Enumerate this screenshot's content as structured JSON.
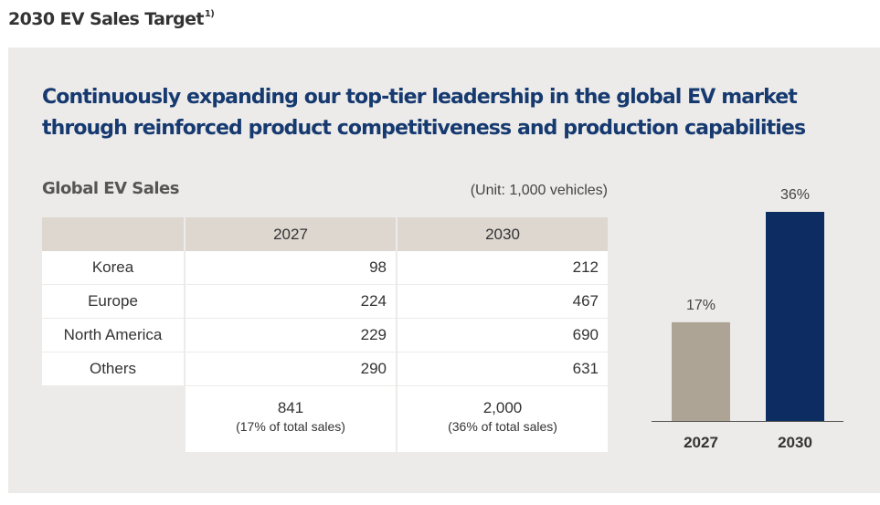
{
  "page_title": "2030 EV Sales Target",
  "page_title_footnote": "1)",
  "headline": {
    "line1": "Continuously expanding our top-tier leadership in the global EV market",
    "line2": "through reinforced product competitiveness and production capabilities"
  },
  "table": {
    "title": "Global EV Sales",
    "unit": "(Unit: 1,000 vehicles)",
    "columns": [
      "2027",
      "2030"
    ],
    "rows": [
      {
        "region": "Korea",
        "values": [
          "98",
          "212"
        ]
      },
      {
        "region": "Europe",
        "values": [
          "224",
          "467"
        ]
      },
      {
        "region": "North America",
        "values": [
          "229",
          "690"
        ]
      },
      {
        "region": "Others",
        "values": [
          "290",
          "631"
        ]
      }
    ],
    "totals": [
      {
        "value": "841",
        "share": "(17% of total sales)"
      },
      {
        "value": "2,000",
        "share": "(36% of total sales)"
      }
    ]
  },
  "colors": {
    "headline": "#163a70",
    "panel": "#ecebe9",
    "header_cell": "#ddd7d0",
    "bar_2027": "#aea496",
    "bar_2030": "#0d2c61"
  },
  "chart_data": {
    "type": "bar",
    "categories": [
      "2027",
      "2030"
    ],
    "values": [
      17,
      36
    ],
    "data_labels": [
      "17%",
      "36%"
    ],
    "colors": [
      "#aea496",
      "#0d2c61"
    ],
    "title": "",
    "xlabel": "",
    "ylabel": "",
    "ylim": [
      0,
      40
    ]
  }
}
